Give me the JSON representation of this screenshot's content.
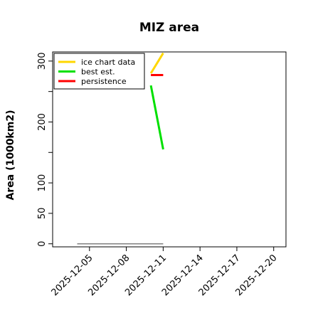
{
  "chart_data": {
    "type": "line",
    "title": "MIZ area",
    "xlabel": "",
    "ylabel": "Area (1000km2)",
    "ylim": [
      -5,
      315
    ],
    "xlim": [
      "2025-12-02",
      "2025-12-21"
    ],
    "y_ticks": [
      0,
      50,
      100,
      200,
      300
    ],
    "y_minor_ticks": [
      150,
      250
    ],
    "x_ticks": [
      "2025-12-05",
      "2025-12-08",
      "2025-12-11",
      "2025-12-14",
      "2025-12-17",
      "2025-12-20"
    ],
    "grid": false,
    "legend_position": "top-left",
    "series": [
      {
        "name": "ice chart data",
        "color": "#FFD700",
        "x": [
          "2025-12-10",
          "2025-12-11"
        ],
        "y": [
          280,
          313
        ]
      },
      {
        "name": "best est.",
        "color": "#00E000",
        "x": [
          "2025-12-10",
          "2025-12-11"
        ],
        "y": [
          260,
          155
        ]
      },
      {
        "name": "persistence",
        "color": "#FF0000",
        "x": [
          "2025-12-10",
          "2025-12-11"
        ],
        "y": [
          277,
          277
        ]
      },
      {
        "name": "",
        "color": "#808080",
        "x": [
          "2025-12-04",
          "2025-12-11"
        ],
        "y": [
          0,
          0
        ]
      }
    ]
  }
}
